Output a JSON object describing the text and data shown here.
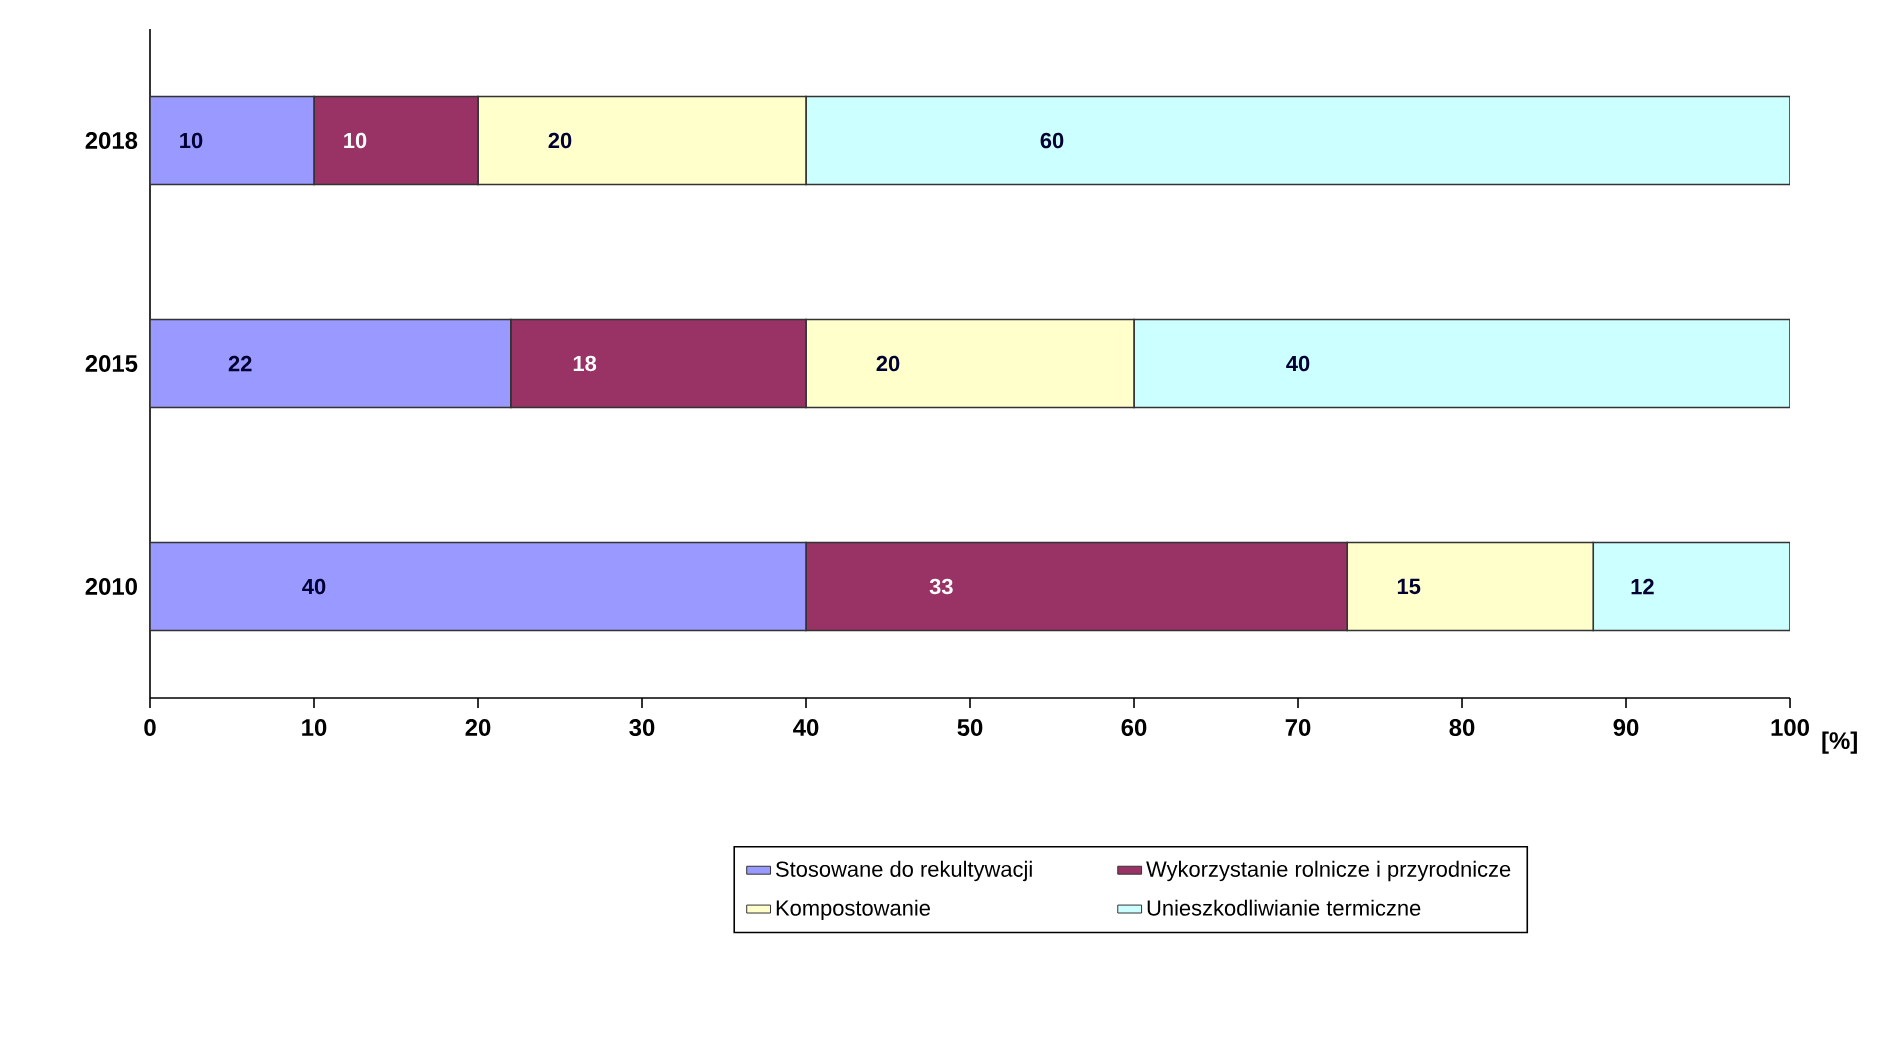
{
  "chart_data": {
    "type": "bar",
    "orientation": "horizontal",
    "stacked": true,
    "data_labels": true,
    "categories": [
      "2018",
      "2015",
      "2010"
    ],
    "series": [
      {
        "name": "Stosowane do rekultywacji",
        "color": "#9999ff",
        "values": [
          10,
          22,
          40
        ]
      },
      {
        "name": "Wykorzystanie rolnicze i przyrodnicze",
        "color": "#993366",
        "values": [
          10,
          18,
          33
        ]
      },
      {
        "name": "Kompostowanie",
        "color": "#ffffcc",
        "values": [
          20,
          20,
          15
        ]
      },
      {
        "name": "Unieszkodliwianie termiczne",
        "color": "#ccffff",
        "values": [
          60,
          40,
          12
        ]
      }
    ],
    "xlabel": "[%]",
    "xlim": [
      0,
      100
    ],
    "xticks": [
      0,
      10,
      20,
      30,
      40,
      50,
      60,
      70,
      80,
      90,
      100
    ],
    "grid": false,
    "legend": "bottom"
  }
}
